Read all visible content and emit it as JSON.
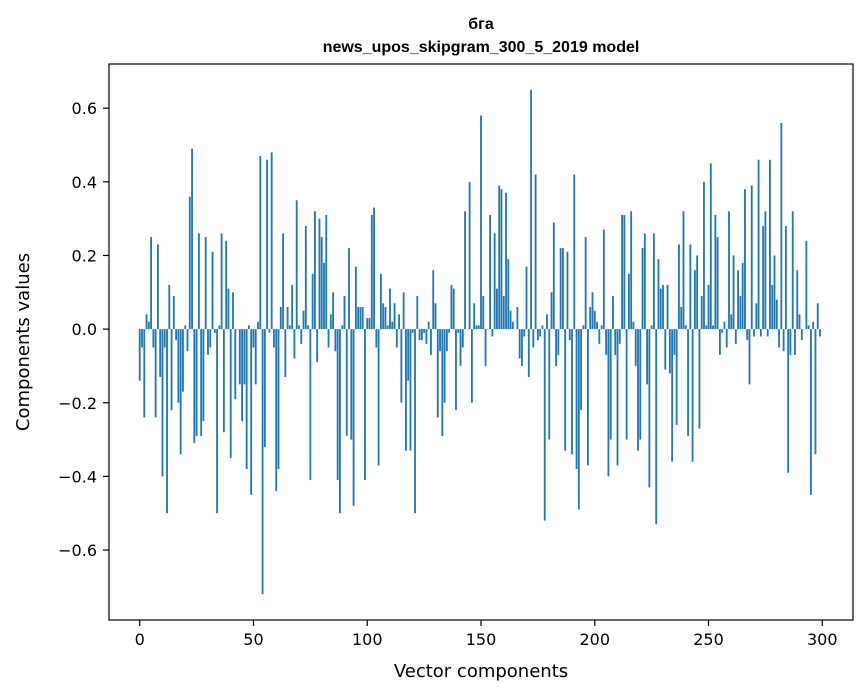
{
  "chart_data": {
    "type": "bar",
    "title": "бга",
    "subtitle": "news_upos_skipgram_300_5_2019 model",
    "xlabel": "Vector components",
    "ylabel": "Components values",
    "xlim": [
      -13.5,
      313.5
    ],
    "ylim": [
      -0.79,
      0.72
    ],
    "xticks": [
      0,
      50,
      100,
      150,
      200,
      250,
      300
    ],
    "yticks": [
      -0.6,
      -0.4,
      -0.2,
      0.0,
      0.2,
      0.4,
      0.6
    ],
    "xtick_labels": [
      "0",
      "50",
      "100",
      "150",
      "200",
      "250",
      "300"
    ],
    "ytick_labels": [
      "−0.6",
      "−0.4",
      "−0.2",
      "0.0",
      "0.2",
      "0.4",
      "0.6"
    ],
    "grid": false,
    "bar_color": "#1f77b4",
    "values": [
      -0.14,
      -0.05,
      -0.24,
      0.04,
      0.02,
      0.25,
      -0.05,
      -0.24,
      0.23,
      -0.13,
      -0.4,
      -0.05,
      -0.5,
      0.12,
      -0.22,
      0.09,
      -0.03,
      -0.2,
      -0.34,
      -0.17,
      0.01,
      -0.06,
      0.36,
      0.49,
      -0.31,
      -0.29,
      0.26,
      -0.29,
      -0.25,
      0.25,
      -0.07,
      -0.05,
      0.21,
      -0.01,
      -0.5,
      0.01,
      0.26,
      -0.28,
      0.24,
      0.11,
      -0.35,
      0.1,
      -0.19,
      0.0,
      -0.15,
      -0.25,
      -0.15,
      -0.38,
      0.01,
      -0.45,
      -0.05,
      -0.15,
      0.02,
      0.47,
      -0.72,
      -0.32,
      0.46,
      -0.01,
      0.48,
      -0.05,
      -0.44,
      -0.38,
      0.06,
      0.26,
      -0.13,
      0.06,
      0.01,
      0.12,
      -0.08,
      0.35,
      0.01,
      -0.04,
      0.05,
      0.28,
      0.01,
      -0.41,
      0.15,
      0.32,
      -0.09,
      0.3,
      0.25,
      0.18,
      0.31,
      -0.05,
      0.04,
      0.1,
      -0.06,
      -0.41,
      -0.5,
      0.01,
      0.09,
      -0.29,
      0.22,
      -0.3,
      -0.48,
      0.17,
      0.06,
      0.06,
      0.06,
      -0.41,
      0.03,
      0.03,
      0.31,
      0.33,
      -0.05,
      -0.37,
      0.15,
      0.07,
      0.06,
      0.01,
      0.11,
      0.02,
      0.07,
      -0.05,
      0.04,
      -0.2,
      0.1,
      -0.33,
      -0.14,
      -0.33,
      -0.01,
      -0.5,
      0.09,
      -0.03,
      -0.03,
      -0.01,
      -0.04,
      0.02,
      -0.07,
      0.16,
      0.07,
      -0.24,
      -0.06,
      -0.29,
      -0.2,
      -0.06,
      -0.01,
      0.12,
      0.11,
      -0.22,
      -0.01,
      -0.1,
      -0.05,
      0.32,
      0.0,
      0.4,
      -0.2,
      0.07,
      0.01,
      0.01,
      0.58,
      0.09,
      -0.1,
      0.0,
      0.31,
      -0.02,
      0.26,
      0.11,
      0.39,
      0.38,
      0.09,
      0.37,
      0.19,
      0.05,
      0.02,
      0.0,
      0.06,
      -0.08,
      -0.1,
      -0.02,
      0.17,
      -0.13,
      0.65,
      -0.05,
      0.42,
      -0.03,
      -0.02,
      0.01,
      -0.52,
      0.04,
      -0.3,
      0.1,
      0.29,
      -0.1,
      -0.07,
      0.22,
      0.22,
      -0.33,
      0.21,
      -0.03,
      -0.34,
      0.42,
      -0.38,
      -0.49,
      -0.22,
      0.01,
      0.25,
      -0.37,
      0.06,
      0.1,
      0.05,
      0.02,
      -0.04,
      0.01,
      0.27,
      -0.07,
      -0.4,
      -0.3,
      0.09,
      -0.07,
      -0.37,
      -0.04,
      0.31,
      0.31,
      -0.3,
      0.15,
      0.32,
      0.02,
      -0.1,
      -0.33,
      -0.3,
      0.22,
      0.26,
      -0.15,
      -0.43,
      0.01,
      0.26,
      -0.53,
      0.19,
      0.11,
      0.12,
      -0.11,
      0.12,
      -0.12,
      -0.36,
      -0.07,
      -0.26,
      0.23,
      0.06,
      0.32,
      0.01,
      -0.29,
      0.23,
      -0.36,
      0.16,
      0.2,
      -0.27,
      0.09,
      0.4,
      0.01,
      0.12,
      0.45,
      0.01,
      0.31,
      0.25,
      -0.07,
      -0.01,
      0.02,
      -0.05,
      0.32,
      0.04,
      0.2,
      -0.04,
      0.16,
      0.09,
      0.18,
      0.38,
      -0.03,
      -0.15,
      0.39,
      -0.02,
      0.07,
      0.46,
      -0.02,
      0.28,
      0.32,
      -0.02,
      0.46,
      0.12,
      0.2,
      0.08,
      -0.05,
      0.56,
      -0.06,
      0.28,
      -0.39,
      -0.07,
      0.32,
      -0.07,
      0.16,
      0.04,
      -0.03,
      0.0,
      0.24,
      0.01,
      -0.45,
      0.02,
      -0.34,
      0.07,
      -0.02
    ]
  }
}
